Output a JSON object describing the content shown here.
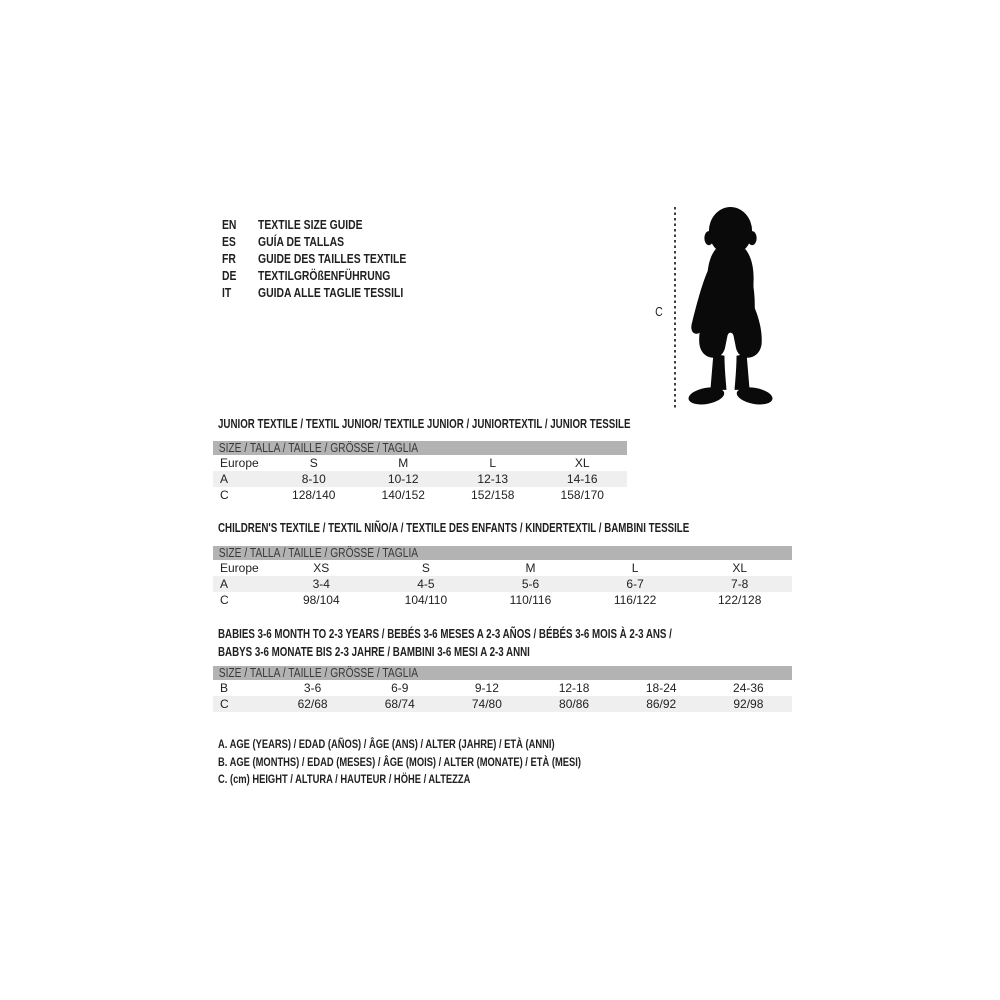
{
  "page": {
    "background": "#ffffff"
  },
  "colors": {
    "size_bar_bg": "#b3b3b3",
    "shaded_row_bg": "#efefef",
    "text": "#1f1f1f",
    "dashed_line": "#3f3f3f",
    "silhouette": "#0a0a0a"
  },
  "language_guide": {
    "items": [
      {
        "code": "EN",
        "label": "TEXTILE SIZE GUIDE"
      },
      {
        "code": "ES",
        "label": "GUÍA DE TALLAS"
      },
      {
        "code": "FR",
        "label": "GUIDE DES TAILLES TEXTILE"
      },
      {
        "code": "DE",
        "label": "TEXTILGRÖßENFÜHRUNG"
      },
      {
        "code": "IT",
        "label": "GUIDA ALLE TAGLIE TESSILI"
      }
    ]
  },
  "figure": {
    "measure_label": "C",
    "silhouette": "toddler-child-silhouette"
  },
  "sections": [
    {
      "id": "junior",
      "title_lines": [
        "JUNIOR TEXTILE / TEXTIL JUNIOR/ TEXTILE JUNIOR / JUNIORTEXTIL / JUNIOR TESSILE"
      ],
      "size_bar": "SIZE / TALLA / TAILLE / GRÖSSE / TAGLIA",
      "rows": [
        {
          "label": "Europe",
          "values": [
            "S",
            "M",
            "L",
            "XL"
          ],
          "shaded": false
        },
        {
          "label": "A",
          "values": [
            "8-10",
            "10-12",
            "12-13",
            "14-16"
          ],
          "shaded": true
        },
        {
          "label": "C",
          "values": [
            "128/140",
            "140/152",
            "152/158",
            "158/170"
          ],
          "shaded": false
        }
      ]
    },
    {
      "id": "children",
      "title_lines": [
        "CHILDREN'S TEXTILE / TEXTIL NIÑO/A / TEXTILE DES ENFANTS / KINDERTEXTIL / BAMBINI TESSILE"
      ],
      "size_bar": "SIZE / TALLA / TAILLE / GRÖSSE / TAGLIA",
      "rows": [
        {
          "label": "Europe",
          "values": [
            "XS",
            "S",
            "M",
            "L",
            "XL"
          ],
          "shaded": false
        },
        {
          "label": "A",
          "values": [
            "3-4",
            "4-5",
            "5-6",
            "6-7",
            "7-8"
          ],
          "shaded": true
        },
        {
          "label": "C",
          "values": [
            "98/104",
            "104/110",
            "110/116",
            "116/122",
            "122/128"
          ],
          "shaded": false
        }
      ]
    },
    {
      "id": "babies",
      "title_lines": [
        "BABIES 3-6 MONTH TO 2-3 YEARS / BEBÉS 3-6 MESES A 2-3 AÑOS / BÉBÉS 3-6 MOIS À 2-3 ANS /",
        "BABYS 3-6 MONATE BIS 2-3 JAHRE / BAMBINI 3-6 MESI A 2-3 ANNI"
      ],
      "size_bar": "SIZE / TALLA / TAILLE / GRÖSSE / TAGLIA",
      "rows": [
        {
          "label": "B",
          "values": [
            "3-6",
            "6-9",
            "9-12",
            "12-18",
            "18-24",
            "24-36"
          ],
          "shaded": false
        },
        {
          "label": "C",
          "values": [
            "62/68",
            "68/74",
            "74/80",
            "80/86",
            "86/92",
            "92/98"
          ],
          "shaded": true
        }
      ]
    }
  ],
  "legend": {
    "lines": [
      "A. AGE (YEARS) / EDAD (AÑOS) / ÂGE (ANS) / ALTER (JAHRE) / ETÀ (ANNI)",
      "B. AGE (MONTHS) / EDAD (MESES) / ÂGE (MOIS) / ALTER (MONATE) / ETÀ (MESI)",
      "C. (cm) HEIGHT / ALTURA / HAUTEUR / HÖHE / ALTEZZA"
    ]
  }
}
